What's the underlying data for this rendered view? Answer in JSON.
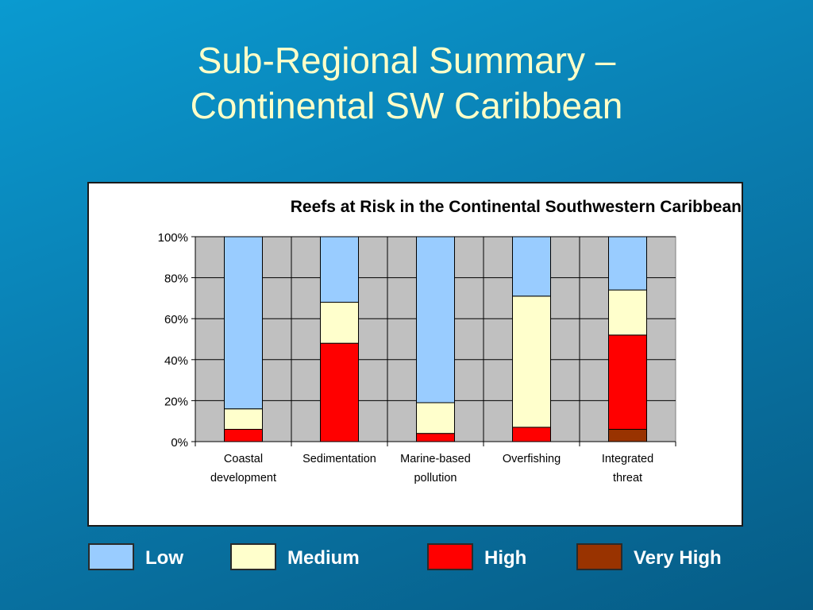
{
  "slide": {
    "title_line1": "Sub-Regional Summary –",
    "title_line2": "Continental SW Caribbean"
  },
  "chart_data": {
    "type": "bar",
    "stacked": true,
    "title": "Reefs at Risk in the Continental Southwestern Caribbean",
    "categories": [
      [
        "Coastal",
        "development"
      ],
      [
        "Sedimentation"
      ],
      [
        "Marine-based",
        "pollution"
      ],
      [
        "Overfishing"
      ],
      [
        "Integrated",
        "threat"
      ]
    ],
    "series": [
      {
        "name": "Very High",
        "color": "#993300",
        "values": [
          0,
          0,
          0,
          0,
          6
        ]
      },
      {
        "name": "High",
        "color": "#ff0000",
        "values": [
          6,
          48,
          4,
          7,
          46
        ]
      },
      {
        "name": "Medium",
        "color": "#ffffcc",
        "values": [
          10,
          20,
          15,
          64,
          22
        ]
      },
      {
        "name": "Low",
        "color": "#99ccff",
        "values": [
          84,
          32,
          81,
          29,
          26
        ]
      }
    ],
    "ylim": [
      0,
      100
    ],
    "yticks": [
      "0%",
      "20%",
      "40%",
      "60%",
      "80%",
      "100%"
    ],
    "grid": true,
    "plot_background": "#c0c0c0",
    "legend_placement": "bottom"
  },
  "legend": [
    {
      "label": "Low",
      "color": "#99ccff"
    },
    {
      "label": "Medium",
      "color": "#ffffcc"
    },
    {
      "label": "High",
      "color": "#ff0000"
    },
    {
      "label": "Very High",
      "color": "#993300"
    }
  ]
}
